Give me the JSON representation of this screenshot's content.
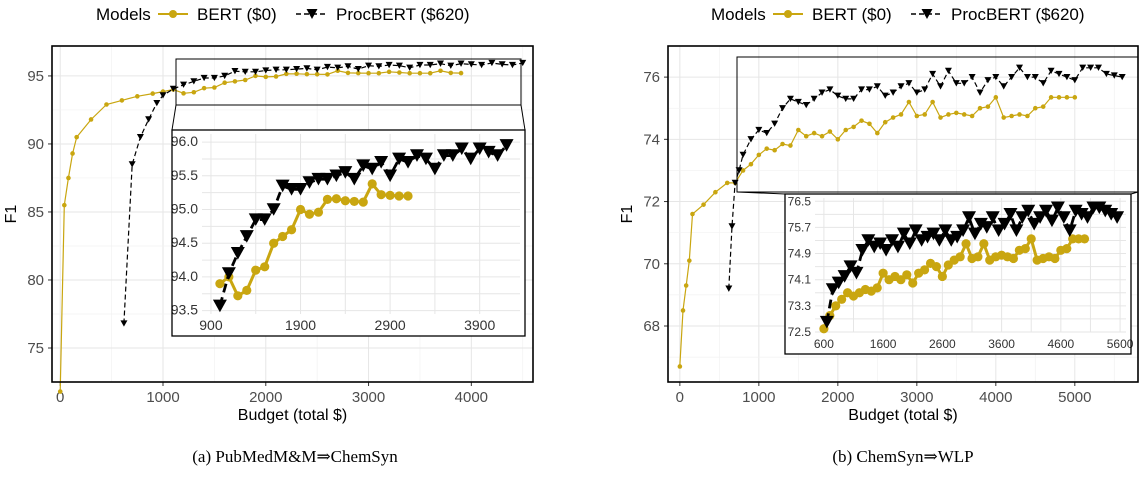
{
  "colors": {
    "bert": "#c9a610",
    "procbert": "#000000"
  },
  "legend": {
    "title": "Models",
    "bert": "BERT ($0)",
    "procbert": "ProcBERT ($620)"
  },
  "chart_data": [
    {
      "type": "line",
      "caption": "(a) PubMedM&M⇒ChemSyn",
      "xlabel": "Budget (total $)",
      "ylabel": "F1",
      "xlim": [
        -80,
        4600
      ],
      "ylim": [
        72.5,
        97.2
      ],
      "xticks": [
        0,
        1000,
        2000,
        3000,
        4000
      ],
      "yticks": [
        75,
        80,
        85,
        90,
        95
      ],
      "grid": true,
      "legend_position": "top",
      "series": [
        {
          "name": "BERT ($0)",
          "x": [
            0,
            40,
            80,
            120,
            160,
            300,
            450,
            600,
            750,
            900,
            1000,
            1100,
            1200,
            1300,
            1400,
            1500,
            1600,
            1700,
            1800,
            1900,
            2000,
            2100,
            2200,
            2300,
            2400,
            2500,
            2600,
            2700,
            2800,
            2900,
            3000,
            3100,
            3200,
            3300,
            3400,
            3500,
            3600,
            3700,
            3800,
            3900
          ],
          "y": [
            71.8,
            85.5,
            87.5,
            89.3,
            90.5,
            91.8,
            92.9,
            93.2,
            93.5,
            93.7,
            93.85,
            94.0,
            93.72,
            93.8,
            94.1,
            94.15,
            94.5,
            94.6,
            94.7,
            95.0,
            94.93,
            94.96,
            95.15,
            95.16,
            95.13,
            95.12,
            95.11,
            95.38,
            95.22,
            95.21,
            95.2,
            95.2,
            95.3,
            95.25,
            95.2,
            95.2,
            95.2,
            95.38,
            95.22,
            95.21
          ]
        },
        {
          "name": "ProcBERT ($620)",
          "x": [
            620,
            700,
            780,
            860,
            940,
            1000,
            1100,
            1200,
            1300,
            1400,
            1500,
            1600,
            1700,
            1800,
            1900,
            2000,
            2100,
            2200,
            2300,
            2400,
            2500,
            2600,
            2700,
            2800,
            2900,
            3000,
            3100,
            3200,
            3300,
            3400,
            3500,
            3600,
            3700,
            3800,
            3900,
            4000,
            4100,
            4200,
            4300,
            4400,
            4500
          ],
          "y": [
            76.8,
            88.5,
            90.5,
            91.8,
            93.0,
            93.57,
            94.05,
            94.35,
            94.6,
            94.85,
            94.85,
            95.0,
            95.35,
            95.3,
            95.3,
            95.4,
            95.45,
            95.45,
            95.5,
            95.55,
            95.45,
            95.65,
            95.6,
            95.7,
            95.5,
            95.75,
            95.7,
            95.8,
            95.75,
            95.6,
            95.8,
            95.8,
            95.9,
            95.75,
            95.9,
            95.85,
            95.8,
            95.95,
            95.85,
            95.8,
            95.95
          ]
        }
      ],
      "inset": {
        "xlim": [
          800,
          4350
        ],
        "ylim": [
          93.45,
          96.12
        ],
        "xticks": [
          900,
          1900,
          2900,
          3900
        ],
        "yticks": [
          "93.5",
          "94.0",
          "94.5",
          "95.0",
          "95.5",
          "96.0"
        ],
        "series": [
          {
            "name": "BERT ($0)",
            "x": [
              1000,
              1100,
              1200,
              1300,
              1400,
              1500,
              1600,
              1700,
              1800,
              1900,
              2000,
              2100,
              2200,
              2300,
              2400,
              2500,
              2600,
              2700,
              2800,
              2900,
              3000,
              3100
            ],
            "y": [
              93.9,
              94.0,
              93.72,
              93.8,
              94.1,
              94.15,
              94.5,
              94.6,
              94.7,
              95.0,
              94.93,
              94.96,
              95.15,
              95.16,
              95.13,
              95.12,
              95.11,
              95.38,
              95.22,
              95.21,
              95.2,
              95.2
            ]
          },
          {
            "name": "ProcBERT ($620)",
            "x": [
              1000,
              1100,
              1200,
              1300,
              1400,
              1500,
              1600,
              1700,
              1800,
              1900,
              2000,
              2100,
              2200,
              2300,
              2400,
              2500,
              2600,
              2700,
              2800,
              2900,
              3000,
              3100,
              3200,
              3300,
              3400,
              3500,
              3600,
              3700,
              3800,
              3900,
              4000,
              4100,
              4200
            ],
            "y": [
              93.57,
              94.05,
              94.35,
              94.6,
              94.85,
              94.85,
              95.0,
              95.35,
              95.3,
              95.3,
              95.4,
              95.45,
              95.45,
              95.5,
              95.55,
              95.45,
              95.65,
              95.6,
              95.7,
              95.5,
              95.75,
              95.7,
              95.8,
              95.75,
              95.6,
              95.8,
              95.8,
              95.9,
              95.75,
              95.9,
              95.85,
              95.8,
              95.95
            ]
          }
        ]
      }
    },
    {
      "type": "line",
      "caption": "(b) ChemSyn⇒WLP",
      "xlabel": "Budget (total $)",
      "ylabel": "F1",
      "xlim": [
        -150,
        5800
      ],
      "ylim": [
        66.2,
        77.0
      ],
      "xticks": [
        0,
        1000,
        2000,
        3000,
        4000,
        5000
      ],
      "yticks": [
        68,
        70,
        72,
        74,
        76
      ],
      "grid": true,
      "legend_position": "top",
      "series": [
        {
          "name": "BERT ($0)",
          "x": [
            0,
            40,
            80,
            120,
            160,
            300,
            450,
            600,
            700,
            800,
            900,
            1000,
            1100,
            1200,
            1300,
            1400,
            1500,
            1600,
            1700,
            1800,
            1900,
            2000,
            2100,
            2200,
            2300,
            2400,
            2500,
            2600,
            2700,
            2800,
            2900,
            3000,
            3100,
            3200,
            3300,
            3400,
            3500,
            3600,
            3700,
            3800,
            3900,
            4000,
            4100,
            4200,
            4300,
            4400,
            4500,
            4600,
            4700,
            4800,
            4900,
            5000
          ],
          "y": [
            66.7,
            68.5,
            69.3,
            70.1,
            71.6,
            71.9,
            72.3,
            72.6,
            72.6,
            73.0,
            73.2,
            73.5,
            73.7,
            73.65,
            73.85,
            73.8,
            74.3,
            74.1,
            74.2,
            74.1,
            74.25,
            74.0,
            74.3,
            74.4,
            74.6,
            74.5,
            74.2,
            74.55,
            74.7,
            74.8,
            75.2,
            74.75,
            74.8,
            75.2,
            74.7,
            74.8,
            74.85,
            74.8,
            74.75,
            75.0,
            75.05,
            75.35,
            74.7,
            74.75,
            74.8,
            74.75,
            75.0,
            75.05,
            75.35,
            75.35,
            75.35,
            75.35
          ]
        },
        {
          "name": "ProcBERT ($620)",
          "x": [
            620,
            660,
            700,
            750,
            800,
            900,
            1000,
            1100,
            1200,
            1300,
            1400,
            1500,
            1600,
            1700,
            1800,
            1900,
            2000,
            2100,
            2200,
            2300,
            2400,
            2500,
            2600,
            2700,
            2800,
            2900,
            3000,
            3100,
            3200,
            3300,
            3400,
            3500,
            3600,
            3700,
            3800,
            3900,
            4000,
            4100,
            4200,
            4300,
            4400,
            4500,
            4600,
            4700,
            4800,
            4900,
            5000,
            5100,
            5200,
            5300,
            5400,
            5500,
            5600
          ],
          "y": [
            69.2,
            71.2,
            72.6,
            73.0,
            73.5,
            74.0,
            74.3,
            74.2,
            74.5,
            75.0,
            75.3,
            75.2,
            75.1,
            75.3,
            75.5,
            75.6,
            75.4,
            75.3,
            75.3,
            75.6,
            75.6,
            75.7,
            75.4,
            75.5,
            75.7,
            75.8,
            75.5,
            75.6,
            76.1,
            75.7,
            76.2,
            75.8,
            75.8,
            76.0,
            75.5,
            75.9,
            76.0,
            75.7,
            76.0,
            76.3,
            76.0,
            76.0,
            75.8,
            76.2,
            76.1,
            76.0,
            75.9,
            76.3,
            76.3,
            76.3,
            76.1,
            76.05,
            76.0
          ]
        }
      ],
      "inset": {
        "xlim": [
          450,
          5700
        ],
        "ylim": [
          72.5,
          76.6
        ],
        "xticks": [
          600,
          1600,
          2600,
          3600,
          4600,
          5600
        ],
        "yticks": [
          "72.5",
          "73.3",
          "74.1",
          "74.9",
          "75.7",
          "76.5"
        ],
        "series": [
          {
            "name": "BERT ($0)",
            "x": [
              600,
              700,
              800,
              900,
              1000,
              1100,
              1200,
              1300,
              1400,
              1500,
              1600,
              1700,
              1800,
              1900,
              2000,
              2100,
              2200,
              2300,
              2400,
              2500,
              2600,
              2700,
              2800,
              2900,
              3000,
              3100,
              3200,
              3300,
              3400,
              3500,
              3600,
              3700,
              3800,
              3900,
              4000,
              4100,
              4200,
              4300,
              4400,
              4500,
              4600,
              4700,
              4800,
              4900,
              5000
            ],
            "y": [
              72.6,
              73.0,
              73.3,
              73.5,
              73.7,
              73.6,
              73.7,
              73.8,
              73.75,
              73.85,
              74.3,
              74.1,
              74.2,
              74.1,
              74.25,
              74.0,
              74.3,
              74.4,
              74.6,
              74.5,
              74.2,
              74.55,
              74.7,
              74.8,
              75.2,
              74.75,
              74.8,
              75.2,
              74.7,
              74.8,
              74.85,
              74.8,
              74.75,
              75.0,
              75.05,
              75.35,
              74.7,
              74.75,
              74.8,
              74.75,
              75.0,
              75.05,
              75.35,
              75.35,
              75.35
            ]
          },
          {
            "name": "ProcBERT ($620)",
            "x": [
              650,
              750,
              850,
              950,
              1050,
              1150,
              1250,
              1350,
              1450,
              1550,
              1650,
              1750,
              1850,
              1950,
              2050,
              2150,
              2250,
              2350,
              2450,
              2550,
              2650,
              2750,
              2850,
              2950,
              3050,
              3150,
              3250,
              3350,
              3450,
              3550,
              3650,
              3750,
              3850,
              3950,
              4050,
              4150,
              4250,
              4350,
              4450,
              4550,
              4650,
              4750,
              4850,
              4950,
              5050,
              5150,
              5250,
              5350,
              5450,
              5550
            ],
            "y": [
              72.8,
              73.8,
              74.0,
              74.2,
              74.5,
              74.3,
              75.0,
              75.3,
              75.1,
              75.2,
              75.0,
              75.3,
              75.1,
              75.5,
              75.2,
              75.6,
              75.3,
              75.4,
              75.5,
              75.3,
              75.6,
              75.3,
              75.4,
              75.6,
              76.0,
              75.5,
              75.8,
              75.7,
              76.0,
              75.6,
              75.8,
              76.1,
              75.6,
              76.0,
              76.2,
              75.8,
              76.0,
              76.2,
              75.9,
              76.3,
              76.0,
              75.6,
              76.2,
              76.1,
              76.0,
              76.3,
              76.3,
              76.2,
              76.1,
              76.0
            ]
          }
        ]
      }
    }
  ]
}
